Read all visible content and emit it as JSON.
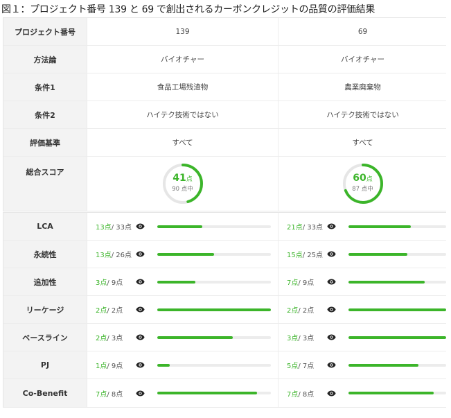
{
  "caption": "図１：プロジェクト番号 139 と 69 で創出されるカーボンクレジットの品質の評価結果",
  "info_rows": [
    {
      "label": "プロジェクト番号",
      "values": [
        "139",
        "69"
      ]
    },
    {
      "label": "方法論",
      "values": [
        "バイオチャー",
        "バイオチャー"
      ]
    },
    {
      "label": "条件1",
      "values": [
        "食品工場残渣物",
        "農業廃棄物"
      ]
    },
    {
      "label": "条件2",
      "values": [
        "ハイテク技術ではない",
        "ハイテク技術ではない"
      ]
    },
    {
      "label": "評価基準",
      "values": [
        "すべて",
        "すべて"
      ]
    }
  ],
  "total": {
    "label": "総合スコア",
    "projects": [
      {
        "score": "41",
        "unit": "点",
        "max_text": "90 点中",
        "fraction": 0.4556
      },
      {
        "score": "60",
        "unit": "点",
        "max_text": "87 点中",
        "fraction": 0.6897
      }
    ]
  },
  "metrics": [
    {
      "label": "LCA",
      "projects": [
        {
          "got": "13点",
          "max": "/ 33点",
          "fraction": 0.394
        },
        {
          "got": "21点",
          "max": "/ 33点",
          "fraction": 0.636
        }
      ]
    },
    {
      "label": "永続性",
      "projects": [
        {
          "got": "13点",
          "max": "/ 26点",
          "fraction": 0.5
        },
        {
          "got": "15点",
          "max": "/ 25点",
          "fraction": 0.6
        }
      ]
    },
    {
      "label": "追加性",
      "projects": [
        {
          "got": "3点",
          "max": "/ 9点",
          "fraction": 0.333
        },
        {
          "got": "7点",
          "max": "/ 9点",
          "fraction": 0.778
        }
      ]
    },
    {
      "label": "リーケージ",
      "projects": [
        {
          "got": "2点",
          "max": "/ 2点",
          "fraction": 1.0
        },
        {
          "got": "2点",
          "max": "/ 2点",
          "fraction": 1.0
        }
      ]
    },
    {
      "label": "ベースライン",
      "projects": [
        {
          "got": "2点",
          "max": "/ 3点",
          "fraction": 0.667
        },
        {
          "got": "3点",
          "max": "/ 3点",
          "fraction": 1.0
        }
      ]
    },
    {
      "label": "PJ",
      "projects": [
        {
          "got": "1点",
          "max": "/ 9点",
          "fraction": 0.111
        },
        {
          "got": "5点",
          "max": "/ 7点",
          "fraction": 0.714
        }
      ]
    },
    {
      "label": "Co-Benefit",
      "projects": [
        {
          "got": "7点",
          "max": "/ 8点",
          "fraction": 0.875
        },
        {
          "got": "7点",
          "max": "/ 8点",
          "fraction": 0.875
        }
      ]
    }
  ],
  "icons": {
    "metric_detail": "eye-icon"
  },
  "colors": {
    "accent": "#3cb52a",
    "track": "#e6e6e6",
    "label_bg": "#f3f3f3"
  }
}
